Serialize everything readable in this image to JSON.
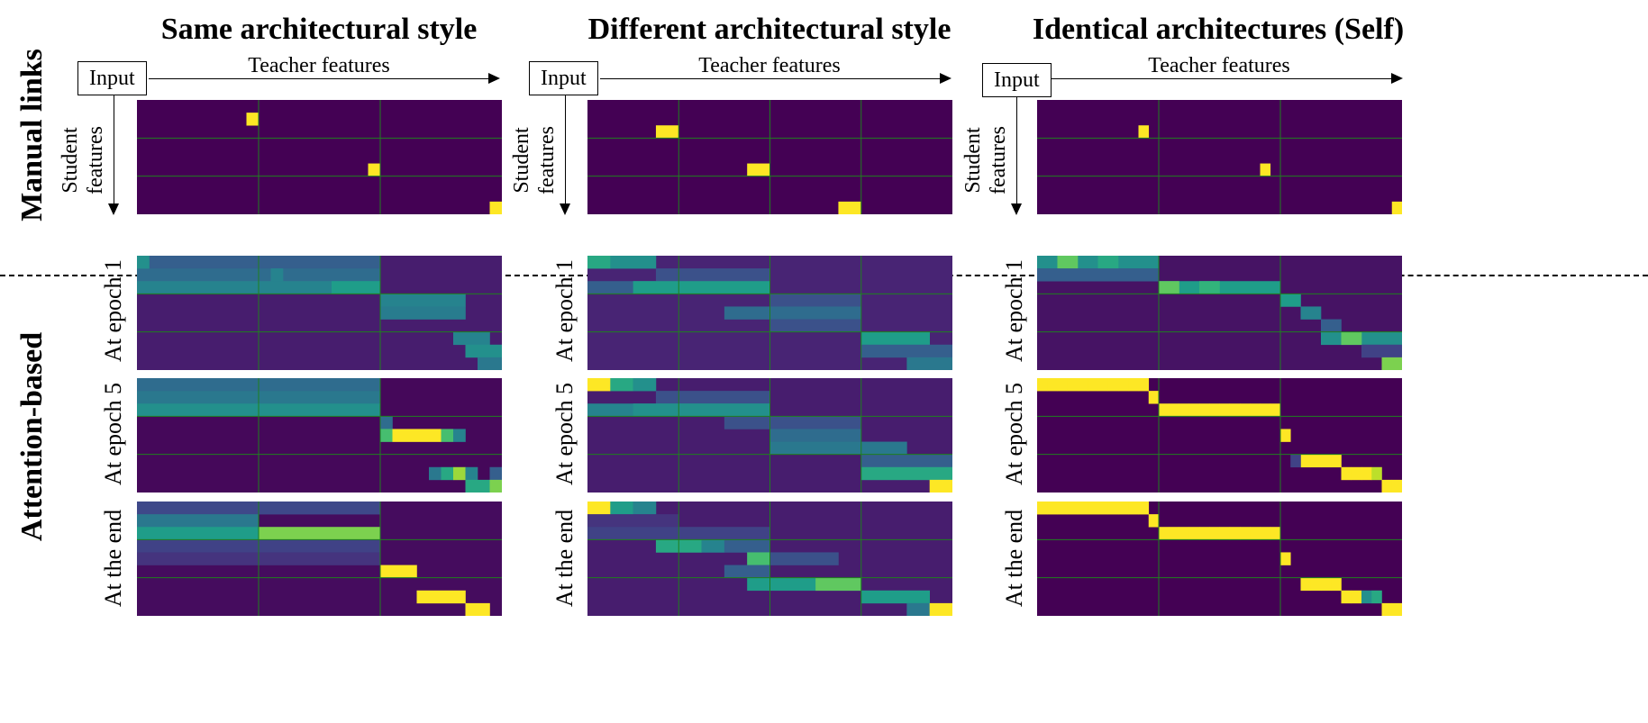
{
  "colors": {
    "background": "#440154",
    "grid": "#1f7f1f",
    "viridis": [
      "#440154",
      "#482878",
      "#3e4989",
      "#31688e",
      "#26828e",
      "#1f9e89",
      "#35b779",
      "#6ece58",
      "#b5de2b",
      "#fde725"
    ]
  },
  "columns": [
    {
      "title": "Same architectural style"
    },
    {
      "title": "Different architectural style"
    },
    {
      "title": "Identical architectures (Self)"
    }
  ],
  "row_labels": {
    "manual": "Manual links",
    "attention": "Attention-based"
  },
  "axis_labels": {
    "input": "Input",
    "teacher": "Teacher features",
    "student_line1": "Student",
    "student_line2": "features"
  },
  "panel_rows": [
    {
      "label": ""
    },
    {
      "label": "At epoch 1"
    },
    {
      "label": "At epoch 5"
    },
    {
      "label": "At the end"
    }
  ],
  "chart_data": [
    {
      "type": "heatmap",
      "column": "Same architectural style",
      "row": "Manual links",
      "n_cols": 30,
      "n_rows": 9,
      "col_groups": [
        10,
        10,
        10
      ],
      "row_groups": [
        3,
        3,
        3
      ],
      "base": 0.0,
      "cells": [
        [
          1,
          9,
          1.0
        ],
        [
          5,
          19,
          1.0
        ],
        [
          8,
          29,
          1.0
        ]
      ]
    },
    {
      "type": "heatmap",
      "column": "Different architectural style",
      "row": "Manual links",
      "n_cols": 16,
      "n_rows": 9,
      "col_groups": [
        4,
        4,
        4,
        4
      ],
      "row_groups": [
        3,
        3,
        3
      ],
      "base": 0.0,
      "cells": [
        [
          2,
          3,
          1.0
        ],
        [
          5,
          7,
          1.0
        ],
        [
          8,
          11,
          1.0
        ]
      ]
    },
    {
      "type": "heatmap",
      "column": "Identical architectures (Self)",
      "row": "Manual links",
      "n_cols": 36,
      "n_rows": 9,
      "col_groups": [
        12,
        12,
        12
      ],
      "row_groups": [
        3,
        3,
        3
      ],
      "base": 0.0,
      "cells": [
        [
          2,
          10,
          1.0
        ],
        [
          5,
          22,
          1.0
        ],
        [
          8,
          35,
          1.0
        ]
      ]
    },
    {
      "type": "heatmap",
      "column": "Same architectural style",
      "row": "At epoch 1",
      "n_cols": 30,
      "n_rows": 9,
      "col_groups": [
        10,
        10,
        10
      ],
      "row_groups": [
        3,
        3,
        3
      ],
      "base": 0.08,
      "rects": [
        [
          0,
          0,
          1,
          20,
          0.3
        ],
        [
          1,
          0,
          1,
          20,
          0.35
        ],
        [
          2,
          0,
          1,
          20,
          0.45
        ],
        [
          2,
          16,
          1,
          4,
          0.55
        ],
        [
          3,
          20,
          1,
          7,
          0.45
        ],
        [
          4,
          20,
          1,
          7,
          0.42
        ],
        [
          6,
          26,
          1,
          3,
          0.45
        ],
        [
          7,
          27,
          1,
          3,
          0.5
        ],
        [
          8,
          28,
          1,
          2,
          0.4
        ]
      ],
      "cells": [
        [
          0,
          0,
          0.5
        ],
        [
          1,
          11,
          0.45
        ]
      ]
    },
    {
      "type": "heatmap",
      "column": "Different architectural style",
      "row": "At epoch 1",
      "n_cols": 16,
      "n_rows": 9,
      "col_groups": [
        4,
        4,
        4,
        4
      ],
      "row_groups": [
        3,
        3,
        3
      ],
      "base": 0.1,
      "rects": [
        [
          0,
          0,
          1,
          1,
          0.6
        ],
        [
          0,
          1,
          1,
          2,
          0.5
        ],
        [
          1,
          3,
          1,
          5,
          0.25
        ],
        [
          2,
          0,
          1,
          3,
          0.3
        ],
        [
          2,
          2,
          1,
          6,
          0.55
        ],
        [
          3,
          8,
          1,
          4,
          0.25
        ],
        [
          4,
          6,
          1,
          6,
          0.35
        ],
        [
          5,
          8,
          1,
          4,
          0.25
        ],
        [
          6,
          12,
          1,
          3,
          0.55
        ],
        [
          7,
          12,
          1,
          4,
          0.3
        ],
        [
          8,
          14,
          1,
          2,
          0.4
        ]
      ]
    },
    {
      "type": "heatmap",
      "column": "Identical architectures (Self)",
      "row": "At epoch 1",
      "n_cols": 36,
      "n_rows": 9,
      "col_groups": [
        12,
        12,
        12
      ],
      "row_groups": [
        3,
        3,
        3
      ],
      "base": 0.05,
      "rects": [
        [
          0,
          0,
          1,
          12,
          0.5
        ],
        [
          0,
          2,
          1,
          2,
          0.75
        ],
        [
          0,
          6,
          1,
          2,
          0.6
        ],
        [
          1,
          0,
          1,
          12,
          0.3
        ],
        [
          2,
          12,
          1,
          12,
          0.55
        ],
        [
          2,
          12,
          1,
          2,
          0.75
        ],
        [
          2,
          16,
          1,
          2,
          0.65
        ],
        [
          3,
          24,
          1,
          2,
          0.55
        ],
        [
          4,
          26,
          1,
          2,
          0.45
        ],
        [
          5,
          28,
          1,
          2,
          0.3
        ],
        [
          6,
          28,
          1,
          8,
          0.5
        ],
        [
          6,
          30,
          1,
          2,
          0.75
        ],
        [
          7,
          32,
          1,
          4,
          0.2
        ],
        [
          8,
          34,
          1,
          2,
          0.8
        ]
      ]
    },
    {
      "type": "heatmap",
      "column": "Same architectural style",
      "row": "At epoch 5",
      "n_cols": 30,
      "n_rows": 9,
      "col_groups": [
        10,
        10,
        10
      ],
      "row_groups": [
        3,
        3,
        3
      ],
      "base": 0.02,
      "rects": [
        [
          0,
          0,
          1,
          20,
          0.35
        ],
        [
          1,
          0,
          1,
          20,
          0.4
        ],
        [
          2,
          0,
          1,
          20,
          0.5
        ],
        [
          3,
          20,
          1,
          1,
          0.35
        ],
        [
          4,
          20,
          1,
          1,
          0.7
        ],
        [
          4,
          21,
          1,
          4,
          1.0
        ],
        [
          4,
          25,
          1,
          1,
          0.7
        ],
        [
          4,
          26,
          1,
          1,
          0.45
        ],
        [
          7,
          24,
          1,
          1,
          0.4
        ],
        [
          7,
          25,
          1,
          1,
          0.6
        ],
        [
          7,
          26,
          1,
          1,
          0.85
        ],
        [
          7,
          27,
          1,
          1,
          0.45
        ],
        [
          7,
          29,
          1,
          1,
          0.3
        ],
        [
          8,
          27,
          1,
          2,
          0.6
        ],
        [
          8,
          29,
          1,
          1,
          0.8
        ]
      ]
    },
    {
      "type": "heatmap",
      "column": "Different architectural style",
      "row": "At epoch 5",
      "n_cols": 16,
      "n_rows": 9,
      "col_groups": [
        4,
        4,
        4,
        4
      ],
      "row_groups": [
        3,
        3,
        3
      ],
      "base": 0.08,
      "rects": [
        [
          0,
          0,
          1,
          1,
          1.0
        ],
        [
          0,
          1,
          1,
          1,
          0.6
        ],
        [
          0,
          2,
          1,
          1,
          0.5
        ],
        [
          1,
          3,
          1,
          5,
          0.25
        ],
        [
          2,
          0,
          1,
          8,
          0.45
        ],
        [
          2,
          2,
          1,
          6,
          0.5
        ],
        [
          3,
          6,
          1,
          6,
          0.25
        ],
        [
          4,
          8,
          1,
          4,
          0.35
        ],
        [
          5,
          8,
          1,
          6,
          0.4
        ],
        [
          6,
          12,
          1,
          4,
          0.3
        ],
        [
          7,
          12,
          1,
          4,
          0.6
        ],
        [
          8,
          15,
          1,
          1,
          1.0
        ]
      ]
    },
    {
      "type": "heatmap",
      "column": "Identical architectures (Self)",
      "row": "At epoch 5",
      "n_cols": 36,
      "n_rows": 9,
      "col_groups": [
        12,
        12,
        12
      ],
      "row_groups": [
        3,
        3,
        3
      ],
      "base": 0.0,
      "cells": [
        [
          0,
          0,
          1.0
        ],
        [
          0,
          1,
          1.0
        ],
        [
          0,
          2,
          1.0
        ],
        [
          0,
          3,
          1.0
        ],
        [
          0,
          4,
          1.0
        ],
        [
          0,
          5,
          1.0
        ],
        [
          0,
          6,
          1.0
        ],
        [
          0,
          7,
          1.0
        ],
        [
          0,
          8,
          1.0
        ],
        [
          0,
          9,
          1.0
        ],
        [
          0,
          10,
          1.0
        ],
        [
          1,
          11,
          1.0
        ],
        [
          2,
          12,
          1.0
        ],
        [
          2,
          13,
          1.0
        ],
        [
          2,
          14,
          1.0
        ],
        [
          2,
          15,
          1.0
        ],
        [
          2,
          16,
          1.0
        ],
        [
          2,
          17,
          1.0
        ],
        [
          2,
          18,
          1.0
        ],
        [
          2,
          19,
          1.0
        ],
        [
          2,
          20,
          1.0
        ],
        [
          2,
          21,
          1.0
        ],
        [
          2,
          22,
          1.0
        ],
        [
          2,
          23,
          1.0
        ],
        [
          4,
          24,
          1.0
        ],
        [
          6,
          26,
          1.0
        ],
        [
          6,
          27,
          1.0
        ],
        [
          6,
          28,
          1.0
        ],
        [
          6,
          29,
          1.0
        ],
        [
          6,
          25,
          0.2
        ],
        [
          7,
          30,
          1.0
        ],
        [
          7,
          31,
          1.0
        ],
        [
          7,
          32,
          1.0
        ],
        [
          7,
          33,
          0.9
        ],
        [
          8,
          34,
          1.0
        ],
        [
          8,
          35,
          1.0
        ]
      ],
      "rects": [
        [
          6,
          29,
          1,
          4,
          0.0
        ]
      ]
    },
    {
      "type": "heatmap",
      "column": "Same architectural style",
      "row": "At the end",
      "n_cols": 30,
      "n_rows": 9,
      "col_groups": [
        10,
        10,
        10
      ],
      "row_groups": [
        3,
        3,
        3
      ],
      "base": 0.03,
      "rects": [
        [
          0,
          0,
          1,
          20,
          0.22
        ],
        [
          1,
          0,
          1,
          10,
          0.4
        ],
        [
          2,
          0,
          1,
          10,
          0.55
        ],
        [
          2,
          10,
          1,
          10,
          0.8
        ],
        [
          3,
          0,
          1,
          20,
          0.2
        ],
        [
          4,
          0,
          1,
          20,
          0.15
        ],
        [
          5,
          20,
          1,
          3,
          1.0
        ],
        [
          7,
          23,
          1,
          4,
          1.0
        ],
        [
          8,
          27,
          1,
          2,
          1.0
        ]
      ]
    },
    {
      "type": "heatmap",
      "column": "Different architectural style",
      "row": "At the end",
      "n_cols": 16,
      "n_rows": 9,
      "col_groups": [
        4,
        4,
        4,
        4
      ],
      "row_groups": [
        3,
        3,
        3
      ],
      "base": 0.08,
      "rects": [
        [
          0,
          0,
          1,
          1,
          1.0
        ],
        [
          0,
          1,
          1,
          1,
          0.55
        ],
        [
          0,
          2,
          1,
          1,
          0.45
        ],
        [
          1,
          0,
          1,
          4,
          0.15
        ],
        [
          2,
          0,
          1,
          8,
          0.2
        ],
        [
          3,
          3,
          1,
          2,
          0.6
        ],
        [
          3,
          5,
          1,
          1,
          0.45
        ],
        [
          3,
          6,
          1,
          2,
          0.3
        ],
        [
          4,
          7,
          1,
          4,
          0.25
        ],
        [
          4,
          7,
          1,
          1,
          0.7
        ],
        [
          5,
          6,
          1,
          2,
          0.3
        ],
        [
          6,
          7,
          1,
          5,
          0.55
        ],
        [
          6,
          10,
          1,
          2,
          0.75
        ],
        [
          7,
          12,
          1,
          3,
          0.55
        ],
        [
          8,
          14,
          1,
          1,
          0.4
        ],
        [
          8,
          15,
          1,
          1,
          1.0
        ]
      ]
    },
    {
      "type": "heatmap",
      "column": "Identical architectures (Self)",
      "row": "At the end",
      "n_cols": 36,
      "n_rows": 9,
      "col_groups": [
        12,
        12,
        12
      ],
      "row_groups": [
        3,
        3,
        3
      ],
      "base": 0.0,
      "cells": [
        [
          0,
          0,
          1.0
        ],
        [
          0,
          1,
          1.0
        ],
        [
          0,
          2,
          1.0
        ],
        [
          0,
          3,
          1.0
        ],
        [
          0,
          4,
          1.0
        ],
        [
          0,
          5,
          1.0
        ],
        [
          0,
          6,
          1.0
        ],
        [
          0,
          7,
          1.0
        ],
        [
          0,
          8,
          1.0
        ],
        [
          0,
          9,
          1.0
        ],
        [
          0,
          10,
          1.0
        ],
        [
          1,
          11,
          1.0
        ],
        [
          2,
          12,
          1.0
        ],
        [
          2,
          13,
          1.0
        ],
        [
          2,
          14,
          1.0
        ],
        [
          2,
          15,
          1.0
        ],
        [
          2,
          16,
          1.0
        ],
        [
          2,
          17,
          1.0
        ],
        [
          2,
          18,
          1.0
        ],
        [
          2,
          19,
          1.0
        ],
        [
          2,
          20,
          1.0
        ],
        [
          2,
          21,
          1.0
        ],
        [
          2,
          22,
          1.0
        ],
        [
          2,
          23,
          1.0
        ],
        [
          4,
          24,
          1.0
        ],
        [
          6,
          26,
          1.0
        ],
        [
          6,
          27,
          1.0
        ],
        [
          6,
          28,
          1.0
        ],
        [
          6,
          29,
          1.0
        ],
        [
          7,
          30,
          1.0
        ],
        [
          7,
          31,
          1.0
        ],
        [
          7,
          32,
          0.5
        ],
        [
          7,
          33,
          0.6
        ],
        [
          8,
          34,
          1.0
        ],
        [
          8,
          35,
          1.0
        ]
      ]
    }
  ]
}
